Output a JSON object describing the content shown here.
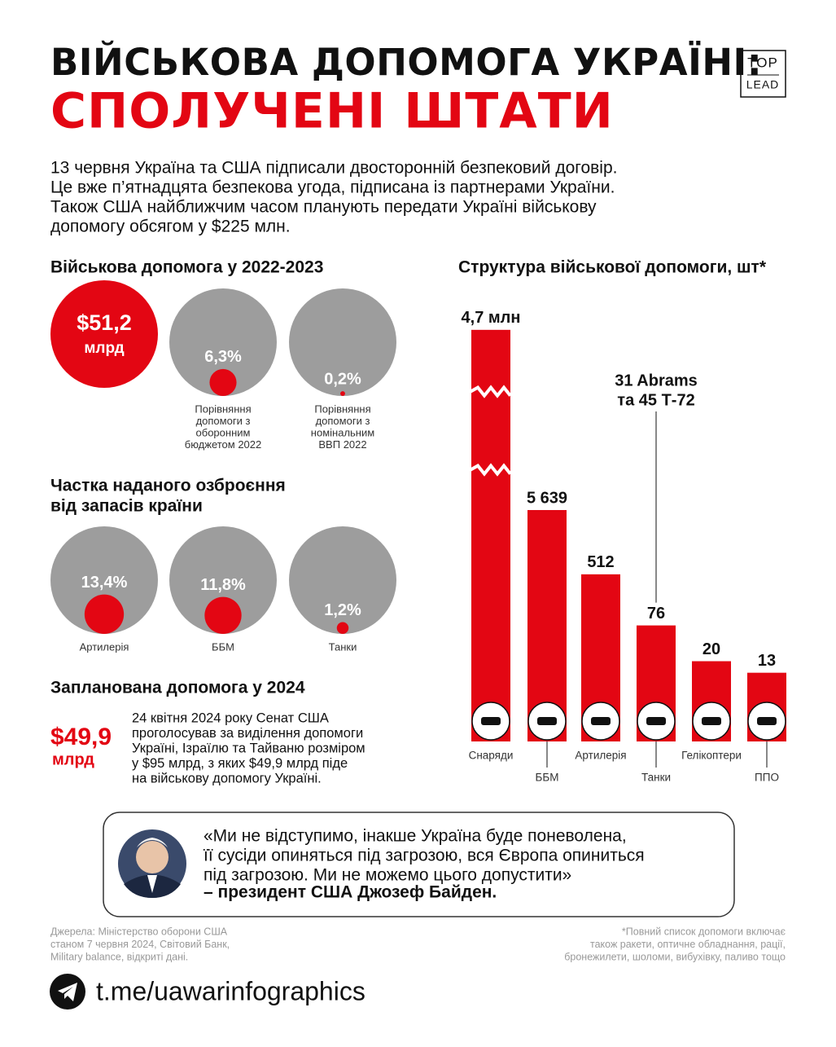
{
  "header": {
    "title_line1": "ВІЙСЬКОВА ДОПОМОГА УКРАЇНІ:",
    "title_line2": "СПОЛУЧЕНІ ШТАТИ",
    "logo_top": "TOP",
    "logo_bottom": "LEAD"
  },
  "intro": [
    "13 червня Україна та США підписали двосторонній безпековий договір.",
    "Це вже п’ятнадцята безпекова угода, підписана із партнерами України.",
    "Також США найближчим часом планують передати Україні військову",
    "допомогу обсягом у $225 млн."
  ],
  "chart_data": [
    {
      "type": "proportion_circles",
      "title": [
        "Військова допомога у 2022-2023"
      ],
      "total_label": "$51,2",
      "total_unit": "млрд",
      "values": [
        6.3,
        0.2
      ],
      "value_labels": [
        "6,3%",
        "0,2%"
      ],
      "categories": [
        [
          "Порівняння",
          "допомоги з",
          "оборонним",
          "бюджетом 2022"
        ],
        [
          "Порівняння",
          "допомоги з",
          "номінальним",
          "ВВП 2022"
        ]
      ],
      "color": "#e30613",
      "base_color": "#9d9d9d"
    },
    {
      "type": "proportion_circles",
      "title": [
        "Частка наданого озброєння",
        "від запасів країни"
      ],
      "values": [
        13.4,
        11.8,
        1.2
      ],
      "value_labels": [
        "13,4%",
        "11,8%",
        "1,2%"
      ],
      "categories": [
        [
          "Артилерія"
        ],
        [
          "ББМ"
        ],
        [
          "Танки"
        ]
      ],
      "color": "#e30613",
      "base_color": "#9d9d9d"
    },
    {
      "type": "bar",
      "title": "Структура військової допомоги, шт*",
      "categories": [
        "Снаряди",
        "ББМ",
        "Артилерія",
        "Танки",
        "Гелікоптери",
        "ППО"
      ],
      "values": [
        4700000,
        5639,
        512,
        76,
        20,
        13
      ],
      "value_labels": [
        "4,7 млн",
        "5 639",
        "512",
        "76",
        "20",
        "13"
      ],
      "annotation": [
        "31 Abrams",
        "та 45 Т-72"
      ],
      "color": "#e30613",
      "log_scale": true,
      "ylim": [
        1,
        10000000
      ],
      "grid": false
    }
  ],
  "planned_2024": {
    "title": "Запланована допомога у 2024",
    "amount": "$49,9",
    "unit": "млрд",
    "text": [
      "24 квітня 2024 року Сенат США",
      "проголосував за виділення допомоги",
      "Україні, Ізраїлю та Тайваню розміром",
      "у $95 млрд, з яких $49,9 млрд піде",
      "на військову допомогу Україні."
    ]
  },
  "quote": {
    "lines": [
      "«Ми не відступимо, інакше Україна буде поневолена,",
      "її сусіди опиняться під загрозою, вся Європа опиниться",
      "під загрозою. Ми не можемо цього допустити»"
    ],
    "author": "– президент США Джозеф Байден."
  },
  "sources": [
    "Джерела: Міністерство оборони США",
    "станом 7 червня 2024, Світовий Банк,",
    "Military balance, відкриті дані."
  ],
  "note": [
    "*Повний список допомоги включає",
    "також ракети, оптичне обладнання, рації,",
    "бронежилети, шоломи, вибухівку, паливо тощо"
  ],
  "link": "t.me/uawarinfographics"
}
